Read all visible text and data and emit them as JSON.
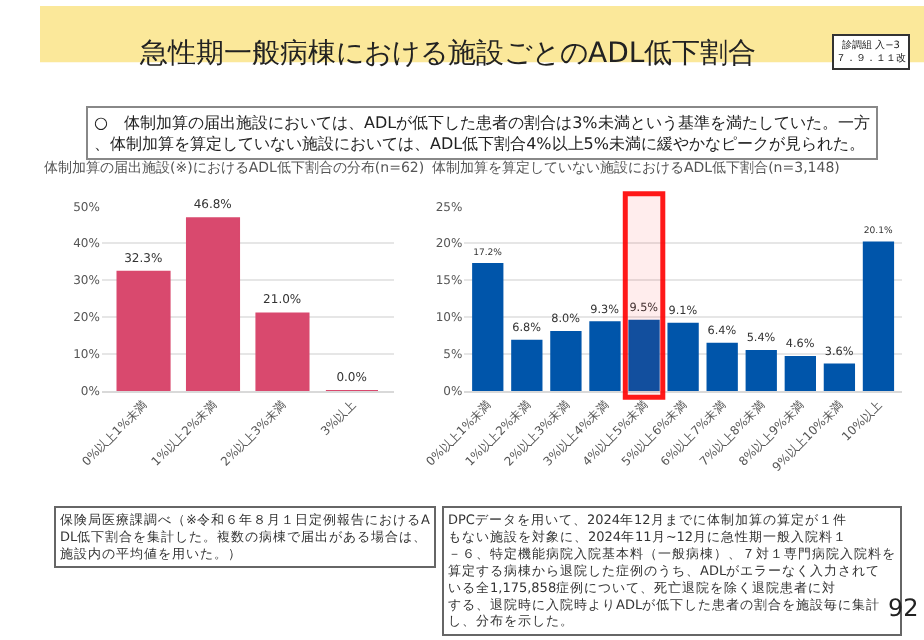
{
  "chart_data": [
    {
      "type": "bar",
      "title": "体制加算の届出施設(※)におけるADL低下割合の分布(n=62)",
      "categories": [
        "0%以上1%未満",
        "1%以上2%未満",
        "2%以上3%未満",
        "3%以上"
      ],
      "values": [
        32.3,
        46.8,
        21.0,
        0.0
      ],
      "color": "#d9496e",
      "value_labels": [
        "32.3%",
        "46.8%",
        "21.0%",
        "0.0%"
      ],
      "ylim": [
        0,
        50
      ],
      "yticks": [
        {
          "value": 0,
          "label": "0%"
        },
        {
          "value": 10,
          "label": "10%"
        },
        {
          "value": 20,
          "label": "20%"
        },
        {
          "value": 30,
          "label": "30%"
        },
        {
          "value": 40,
          "label": "40%"
        },
        {
          "value": 50,
          "label": "50%"
        }
      ],
      "grid": "y",
      "annotations": [
        "急性期一般病棟における施設ごとのADL低下割合",
        "診調組 入−3\n７．９．１１改",
        "○　体制加算の届出施設においては、ADLが低下した患者の割合は3%未満という基準を満たしていた。一方、体制加算を算定していない施設においては、ADL低下割合4%以上5%未満に緩やかなピークが見られた。",
        "保険局医療課調べ（※令和６年８月１日定例報告におけるADL低下割合を集計した。複数の病棟で届出がある場合は、施設内の平均値を用いた。）"
      ]
    },
    {
      "type": "bar",
      "title": "体制加算を算定していない施設におけるADL低下割合(n=3,148)",
      "categories": [
        "0%以上1%未満",
        "1%以上2%未満",
        "2%以上3%未満",
        "3%以上4%未満",
        "4%以上5%未満",
        "5%以上6%未満",
        "6%以上7%未満",
        "7%以上8%未満",
        "8%以上9%未満",
        "9%以上10%未満",
        "10%以上"
      ],
      "values": [
        17.2,
        6.8,
        8.0,
        9.3,
        9.5,
        9.1,
        6.4,
        5.4,
        4.6,
        3.6,
        20.1
      ],
      "color": "#0055aa",
      "value_labels": [
        "17.2%",
        "6.8%",
        "8.0%",
        "9.3%",
        "9.5%",
        "9.1%",
        "6.4%",
        "5.4%",
        "4.6%",
        "3.6%",
        "20.1%"
      ],
      "ylim": [
        0,
        25
      ],
      "yticks": [
        {
          "value": 0,
          "label": "0%"
        },
        {
          "value": 5,
          "label": "5%"
        },
        {
          "value": 10,
          "label": "10%"
        },
        {
          "value": 15,
          "label": "15%"
        },
        {
          "value": 20,
          "label": "20%"
        },
        {
          "value": 25,
          "label": "25%"
        }
      ],
      "grid": "y",
      "bands": [
        {
          "axis": "x",
          "from": "4%以上5%未満",
          "to": "4%以上5%未満",
          "color": "#ff0000"
        }
      ],
      "annotations": [
        "DPCデータを用いて、2024年12月までに体制加算の算定が１件もない施設を対象に、2024年11月~12月に急性期一般入院料１－６、特定機能病院入院基本料（一般病棟）、７対１専門病院入院料を算定する病棟から退院した症例のうち、ADLがエラーなく入力されている全1,175,858症例について、死亡退院を除く退院患者に対する、退院時に入院時よりADLが低下した患者の割合を施設毎に集計し、分布を示した。",
        "92"
      ]
    }
  ]
}
